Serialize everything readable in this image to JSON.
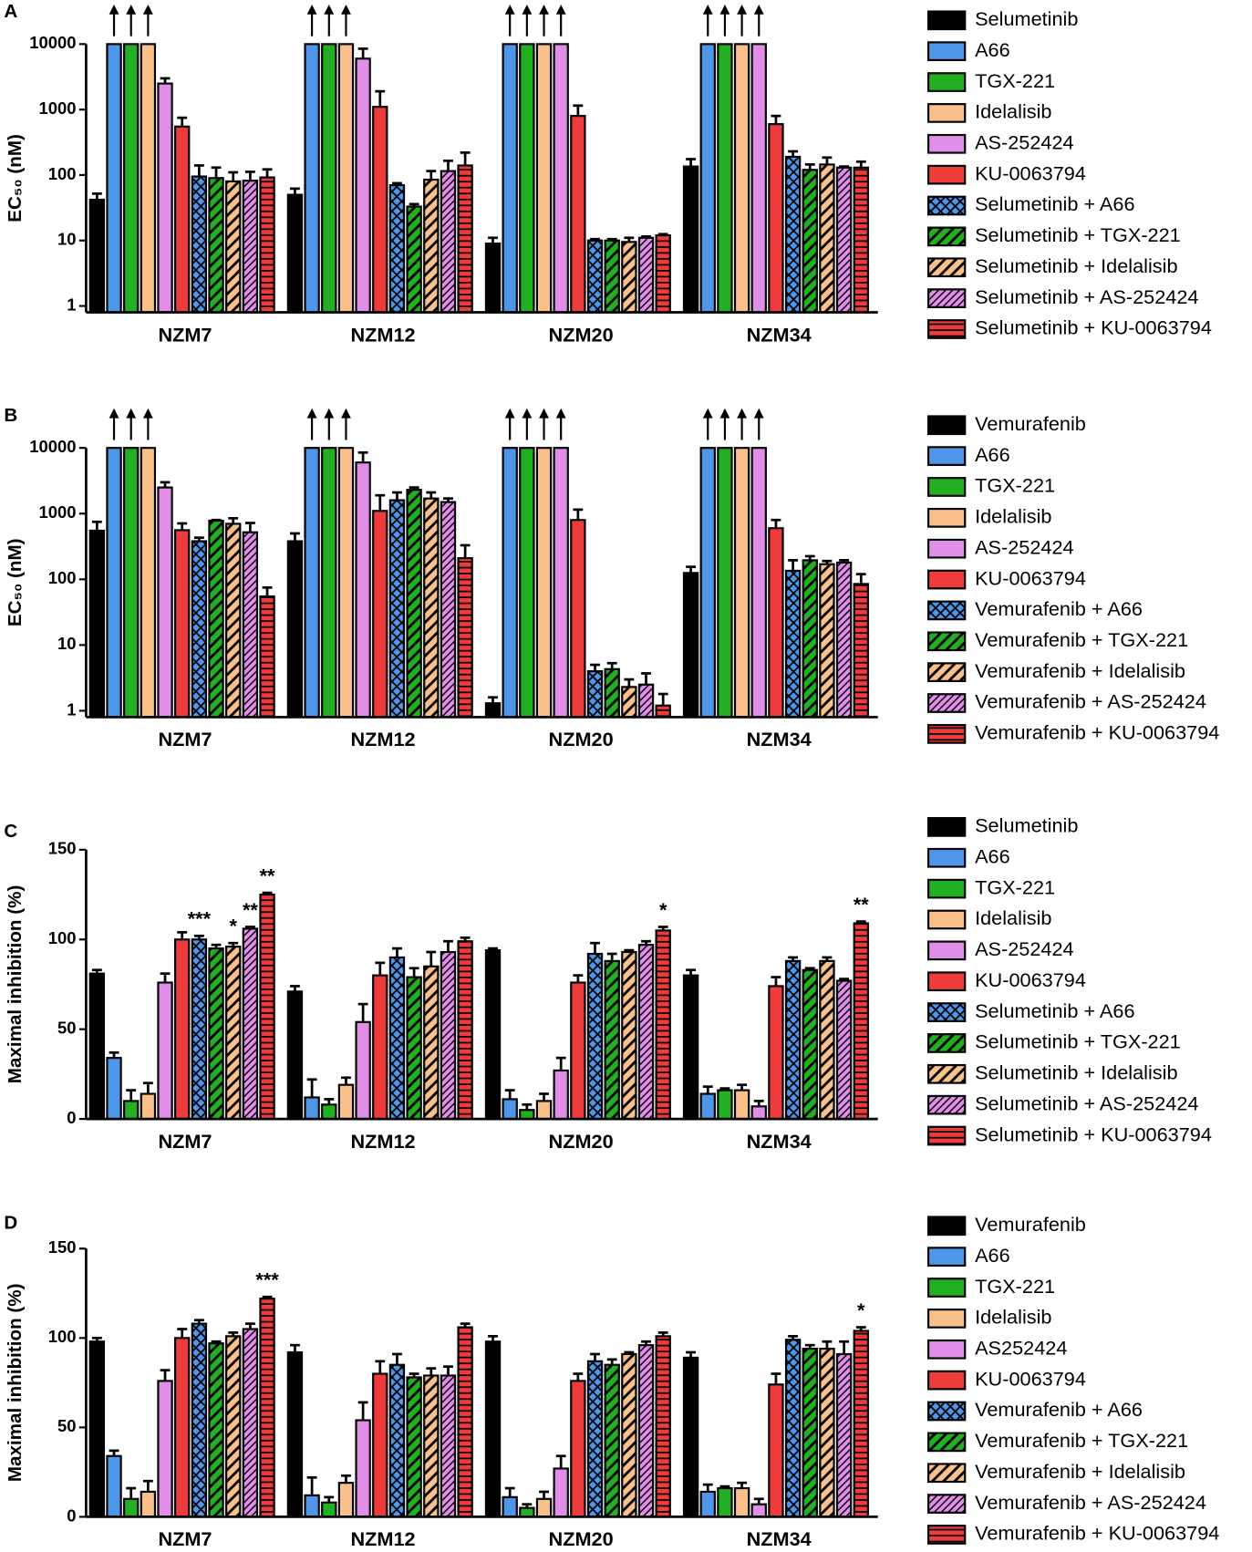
{
  "chart_data": [
    {
      "type": "bar",
      "panel": "A",
      "ylabel": "EC₅₀ (nM)",
      "log_scale": true,
      "ylim": [
        0.8,
        10000
      ],
      "yticks": [
        1,
        10,
        100,
        1000,
        10000
      ],
      "categories": [
        "NZM7",
        "NZM12",
        "NZM20",
        "NZM34"
      ],
      "series": [
        {
          "name": "Selumetinib",
          "color": "#000000",
          "pattern": "solid",
          "values": [
            42,
            50,
            9,
            135
          ],
          "errors": [
            10,
            12,
            2,
            40
          ]
        },
        {
          "name": "A66",
          "color": "#4f95e8",
          "pattern": "solid",
          "values": [
            10000,
            10000,
            10000,
            10000
          ],
          "errors": [
            null,
            null,
            null,
            null
          ]
        },
        {
          "name": "TGX-221",
          "color": "#22b022",
          "pattern": "solid",
          "values": [
            10000,
            10000,
            10000,
            10000
          ],
          "errors": [
            null,
            null,
            null,
            null
          ]
        },
        {
          "name": "Idelalisib",
          "color": "#f9c08a",
          "pattern": "solid",
          "values": [
            10000,
            10000,
            10000,
            10000
          ],
          "errors": [
            null,
            null,
            null,
            null
          ]
        },
        {
          "name": "AS-252424",
          "color": "#e08ee8",
          "pattern": "solid",
          "values": [
            2500,
            6000,
            10000,
            10000
          ],
          "errors": [
            500,
            2500,
            null,
            null
          ]
        },
        {
          "name": "KU-0063794",
          "color": "#ee3b3b",
          "pattern": "solid",
          "values": [
            550,
            1100,
            800,
            600
          ],
          "errors": [
            200,
            800,
            350,
            200
          ]
        },
        {
          "name": "Selumetinib + A66",
          "color": "#4f95e8",
          "pattern": "crosshatch",
          "values": [
            95,
            70,
            10,
            190
          ],
          "errors": [
            45,
            5,
            0.5,
            40
          ]
        },
        {
          "name": "Selumetinib + TGX-221",
          "color": "#22b022",
          "pattern": "diagonal",
          "values": [
            90,
            33,
            10,
            120
          ],
          "errors": [
            40,
            3,
            0.5,
            25
          ]
        },
        {
          "name": "Selumetinib + Idelalisib",
          "color": "#f9c08a",
          "pattern": "diagonal",
          "values": [
            80,
            85,
            9.5,
            145
          ],
          "errors": [
            30,
            30,
            1.5,
            40
          ]
        },
        {
          "name": "Selumetinib + AS-252424",
          "color": "#e08ee8",
          "pattern": "diagonal-fine",
          "values": [
            82,
            115,
            11,
            130
          ],
          "errors": [
            30,
            50,
            0.5,
            5
          ]
        },
        {
          "name": "Selumetinib + KU-0063794",
          "color": "#ee3b3b",
          "pattern": "horizontal",
          "values": [
            92,
            140,
            12,
            130
          ],
          "errors": [
            30,
            80,
            0.5,
            30
          ]
        }
      ]
    },
    {
      "type": "bar",
      "panel": "B",
      "ylabel": "EC₅₀ (nM)",
      "log_scale": true,
      "ylim": [
        0.8,
        10000
      ],
      "yticks": [
        1,
        10,
        100,
        1000,
        10000
      ],
      "categories": [
        "NZM7",
        "NZM12",
        "NZM20",
        "NZM34"
      ],
      "series": [
        {
          "name": "Vemurafenib",
          "color": "#000000",
          "pattern": "solid",
          "values": [
            550,
            380,
            1.3,
            125
          ],
          "errors": [
            200,
            120,
            0.3,
            30
          ]
        },
        {
          "name": "A66",
          "color": "#4f95e8",
          "pattern": "solid",
          "values": [
            10000,
            10000,
            10000,
            10000
          ],
          "errors": [
            null,
            null,
            null,
            null
          ]
        },
        {
          "name": "TGX-221",
          "color": "#22b022",
          "pattern": "solid",
          "values": [
            10000,
            10000,
            10000,
            10000
          ],
          "errors": [
            null,
            null,
            null,
            null
          ]
        },
        {
          "name": "Idelalisib",
          "color": "#f9c08a",
          "pattern": "solid",
          "values": [
            10000,
            10000,
            10000,
            10000
          ],
          "errors": [
            null,
            null,
            null,
            null
          ]
        },
        {
          "name": "AS-252424",
          "color": "#e08ee8",
          "pattern": "solid",
          "values": [
            2500,
            6000,
            10000,
            10000
          ],
          "errors": [
            500,
            2500,
            null,
            null
          ]
        },
        {
          "name": "KU-0063794",
          "color": "#ee3b3b",
          "pattern": "solid",
          "values": [
            560,
            1100,
            800,
            600
          ],
          "errors": [
            150,
            800,
            350,
            200
          ]
        },
        {
          "name": "Vemurafenib + A66",
          "color": "#4f95e8",
          "pattern": "crosshatch",
          "values": [
            380,
            1600,
            4,
            135
          ],
          "errors": [
            50,
            500,
            1,
            60
          ]
        },
        {
          "name": "Vemurafenib + TGX-221",
          "color": "#22b022",
          "pattern": "diagonal",
          "values": [
            780,
            2300,
            4.3,
            195
          ],
          "errors": [
            20,
            200,
            1,
            30
          ]
        },
        {
          "name": "Vemurafenib + Idelalisib",
          "color": "#f9c08a",
          "pattern": "diagonal",
          "values": [
            700,
            1700,
            2.3,
            170
          ],
          "errors": [
            150,
            400,
            0.7,
            20
          ]
        },
        {
          "name": "Vemurafenib + AS-252424",
          "color": "#e08ee8",
          "pattern": "diagonal-fine",
          "values": [
            520,
            1500,
            2.5,
            180
          ],
          "errors": [
            200,
            200,
            1.2,
            15
          ]
        },
        {
          "name": "Vemurafenib + KU-0063794",
          "color": "#ee3b3b",
          "pattern": "horizontal",
          "values": [
            55,
            210,
            1.2,
            85
          ],
          "errors": [
            20,
            120,
            0.6,
            35
          ]
        }
      ]
    },
    {
      "type": "bar",
      "panel": "C",
      "ylabel": "Maximal inhibition (%)",
      "log_scale": false,
      "ylim": [
        0,
        150
      ],
      "yticks": [
        0,
        50,
        100,
        150
      ],
      "categories": [
        "NZM7",
        "NZM12",
        "NZM20",
        "NZM34"
      ],
      "series": [
        {
          "name": "Selumetinib",
          "color": "#000000",
          "pattern": "solid",
          "values": [
            81,
            71,
            94,
            80
          ],
          "errors": [
            2,
            3,
            1,
            3
          ]
        },
        {
          "name": "A66",
          "color": "#4f95e8",
          "pattern": "solid",
          "values": [
            34,
            12,
            11,
            14
          ],
          "errors": [
            3,
            10,
            5,
            4
          ]
        },
        {
          "name": "TGX-221",
          "color": "#22b022",
          "pattern": "solid",
          "values": [
            10,
            8,
            5,
            16
          ],
          "errors": [
            6,
            3,
            3,
            1
          ]
        },
        {
          "name": "Idelalisib",
          "color": "#f9c08a",
          "pattern": "solid",
          "values": [
            14,
            19,
            10,
            16
          ],
          "errors": [
            6,
            4,
            4,
            3
          ]
        },
        {
          "name": "AS-252424",
          "color": "#e08ee8",
          "pattern": "solid",
          "values": [
            76,
            54,
            27,
            7
          ],
          "errors": [
            5,
            10,
            7,
            3
          ]
        },
        {
          "name": "KU-0063794",
          "color": "#ee3b3b",
          "pattern": "solid",
          "values": [
            100,
            80,
            76,
            74
          ],
          "errors": [
            4,
            7,
            4,
            5
          ]
        },
        {
          "name": "Selumetinib + A66",
          "color": "#4f95e8",
          "pattern": "crosshatch",
          "values": [
            100,
            90,
            92,
            88
          ],
          "errors": [
            2,
            5,
            6,
            2
          ],
          "significance": [
            "***",
            null,
            null,
            null
          ]
        },
        {
          "name": "Selumetinib + TGX-221",
          "color": "#22b022",
          "pattern": "diagonal",
          "values": [
            95,
            79,
            88,
            83
          ],
          "errors": [
            2,
            5,
            4,
            1
          ]
        },
        {
          "name": "Selumetinib + Idelalisib",
          "color": "#f9c08a",
          "pattern": "diagonal",
          "values": [
            96,
            85,
            93,
            88
          ],
          "errors": [
            2,
            8,
            1,
            2
          ],
          "significance": [
            "*",
            null,
            null,
            null
          ]
        },
        {
          "name": "Selumetinib + AS-252424",
          "color": "#e08ee8",
          "pattern": "diagonal-fine",
          "values": [
            106,
            93,
            97,
            77
          ],
          "errors": [
            1,
            6,
            2,
            1
          ],
          "significance": [
            "**",
            null,
            null,
            null
          ]
        },
        {
          "name": "Selumetinib + KU-0063794",
          "color": "#ee3b3b",
          "pattern": "horizontal",
          "values": [
            125,
            99,
            105,
            109
          ],
          "errors": [
            1,
            2,
            2,
            1
          ],
          "significance": [
            "**",
            null,
            "*",
            "**"
          ]
        }
      ]
    },
    {
      "type": "bar",
      "panel": "D",
      "ylabel": "Maximal inhibition (%)",
      "log_scale": false,
      "ylim": [
        0,
        150
      ],
      "yticks": [
        0,
        50,
        100,
        150
      ],
      "categories": [
        "NZM7",
        "NZM12",
        "NZM20",
        "NZM34"
      ],
      "series": [
        {
          "name": "Vemurafenib",
          "color": "#000000",
          "pattern": "solid",
          "values": [
            98,
            92,
            98,
            89
          ],
          "errors": [
            2,
            4,
            3,
            3
          ]
        },
        {
          "name": "A66",
          "color": "#4f95e8",
          "pattern": "solid",
          "values": [
            34,
            12,
            11,
            14
          ],
          "errors": [
            3,
            10,
            5,
            4
          ]
        },
        {
          "name": "TGX-221",
          "color": "#22b022",
          "pattern": "solid",
          "values": [
            10,
            8,
            5,
            16
          ],
          "errors": [
            6,
            3,
            2,
            1
          ]
        },
        {
          "name": "Idelalisib",
          "color": "#f9c08a",
          "pattern": "solid",
          "values": [
            14,
            19,
            10,
            16
          ],
          "errors": [
            6,
            4,
            4,
            3
          ]
        },
        {
          "name": "AS252424",
          "color": "#e08ee8",
          "pattern": "solid",
          "values": [
            76,
            54,
            27,
            7
          ],
          "errors": [
            6,
            10,
            7,
            3
          ]
        },
        {
          "name": "KU-0063794",
          "color": "#ee3b3b",
          "pattern": "solid",
          "values": [
            100,
            80,
            76,
            74
          ],
          "errors": [
            5,
            7,
            4,
            6
          ]
        },
        {
          "name": "Vemurafenib + A66",
          "color": "#4f95e8",
          "pattern": "crosshatch",
          "values": [
            108,
            85,
            87,
            99
          ],
          "errors": [
            2,
            6,
            4,
            2
          ]
        },
        {
          "name": "Vemurafenib + TGX-221",
          "color": "#22b022",
          "pattern": "diagonal",
          "values": [
            97,
            78,
            85,
            94
          ],
          "errors": [
            1,
            2,
            3,
            2
          ]
        },
        {
          "name": "Vemurafenib + Idelalisib",
          "color": "#f9c08a",
          "pattern": "diagonal",
          "values": [
            101,
            79,
            91,
            94
          ],
          "errors": [
            2,
            4,
            1,
            4
          ]
        },
        {
          "name": "Vemurafenib + AS-252424",
          "color": "#e08ee8",
          "pattern": "diagonal-fine",
          "values": [
            105,
            79,
            96,
            91
          ],
          "errors": [
            3,
            5,
            2,
            7
          ]
        },
        {
          "name": "Vemurafenib + KU-0063794",
          "color": "#ee3b3b",
          "pattern": "horizontal",
          "values": [
            122,
            106,
            101,
            104
          ],
          "errors": [
            1,
            2,
            2,
            2
          ],
          "significance": [
            "***",
            null,
            null,
            "*"
          ]
        }
      ]
    }
  ]
}
